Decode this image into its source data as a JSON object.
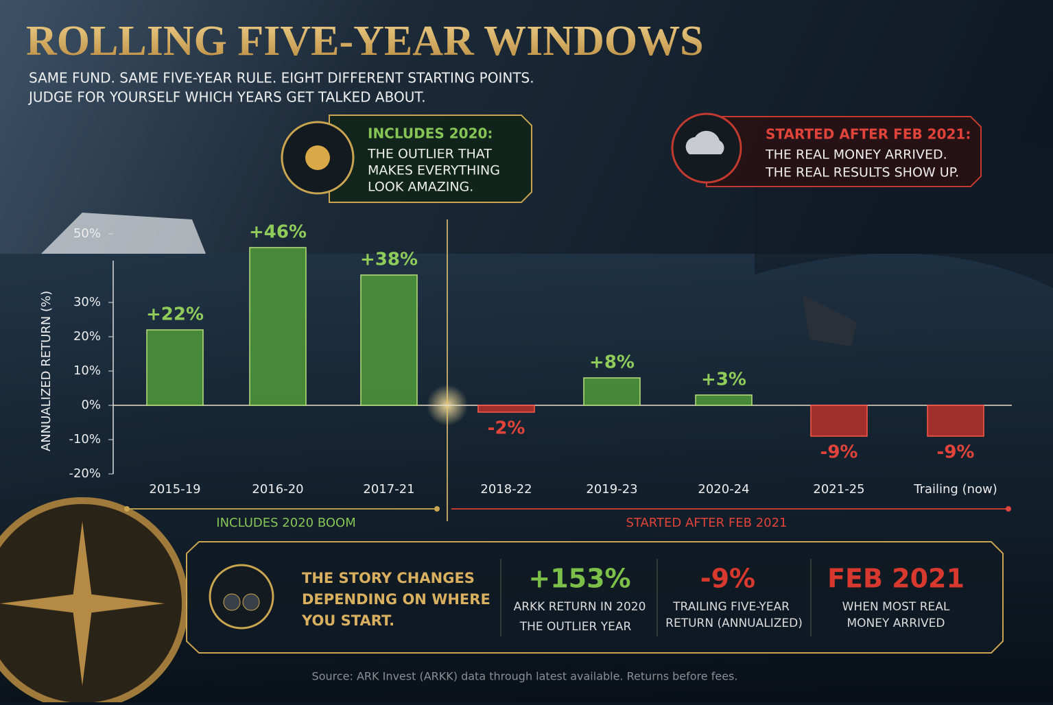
{
  "header": {
    "title": "ROLLING FIVE-YEAR WINDOWS",
    "subtitle": [
      "SAME FUND. SAME FIVE-YEAR RULE. EIGHT DIFFERENT STARTING POINTS.",
      "JUDGE FOR YOURSELF WHICH YEARS GET TALKED ABOUT."
    ]
  },
  "callouts": [
    {
      "heading": "INCLUDES 2020:",
      "lines": [
        "THE OUTLIER THAT",
        "MAKES EVERYTHING",
        "LOOK AMAZING."
      ]
    },
    {
      "heading": "STARTED AFTER FEB 2021:",
      "lines": [
        "THE REAL MONEY ARRIVED.",
        "THE REAL RESULTS SHOW UP."
      ]
    }
  ],
  "chart_data": {
    "type": "bar",
    "y_label": "ANNUALIZED RETURN (%)",
    "categories": [
      "2015-19",
      "2016-20",
      "2017-21",
      "2018-22",
      "2019-23",
      "2020-24",
      "2021-25",
      "Trailing (now)"
    ],
    "values": [
      22,
      46,
      38,
      -2,
      8,
      3,
      -9,
      -9
    ],
    "value_labels": [
      "+22%",
      "+46%",
      "+38%",
      "-2%",
      "+8%",
      "+3%",
      "-9%",
      "-9%"
    ],
    "color": "#4f9a38",
    "negative_color": "#b8302a",
    "ylim": [
      -20,
      55
    ],
    "yticks": [
      {
        "value": -20,
        "label": "-20%"
      },
      {
        "value": -10,
        "label": "-10%"
      },
      {
        "value": 0,
        "label": "0%"
      },
      {
        "value": 10,
        "label": "10%"
      },
      {
        "value": 20,
        "label": "20%"
      },
      {
        "value": 30,
        "label": "30%"
      },
      {
        "value": 50,
        "label": "50%"
      }
    ],
    "grid": false
  },
  "groups": [
    {
      "label": "INCLUDES 2020 BOOM"
    },
    {
      "label": "STARTED AFTER FEB 2021"
    }
  ],
  "summary": {
    "lines": [
      "THE STORY CHANGES",
      "DEPENDING ON WHERE",
      "YOU START."
    ],
    "stats": [
      {
        "value": "+153%",
        "caption": [
          "ARKK RETURN IN 2020",
          "THE OUTLIER YEAR"
        ]
      },
      {
        "value": "-9%",
        "caption": [
          "TRAILING FIVE-YEAR",
          "RETURN (ANNUALIZED)"
        ]
      },
      {
        "value": "FEB 2021",
        "caption": [
          "WHEN MOST REAL",
          "MONEY ARRIVED"
        ]
      }
    ]
  },
  "source": "Source: ARK Invest (ARKK) data through latest available. Returns before fees."
}
